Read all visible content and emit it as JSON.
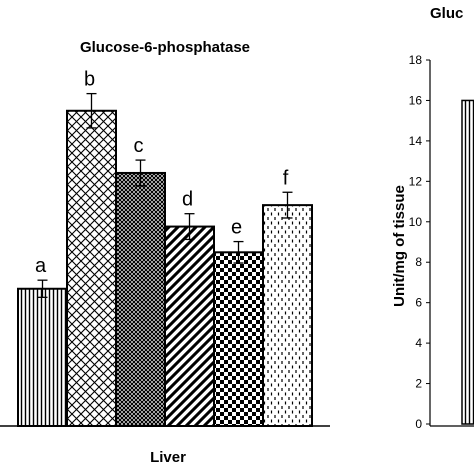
{
  "chart_data": [
    {
      "type": "bar",
      "title": "Glucose-6-phosphatase",
      "xlabel": "Liver",
      "ylabel": "",
      "ylim": [
        0,
        18
      ],
      "categories": [
        "a",
        "b",
        "c",
        "d",
        "e",
        "f"
      ],
      "values": [
        6.4,
        14.7,
        11.8,
        9.3,
        8.1,
        10.3
      ],
      "errors": [
        0.4,
        0.8,
        0.6,
        0.6,
        0.5,
        0.6
      ],
      "patterns": [
        "vertical-lines",
        "large-crosshatch",
        "dense-crosshatch",
        "diagonal-stripes",
        "checkerboard",
        "dashed-dots"
      ],
      "grid": false
    },
    {
      "type": "bar",
      "title": "Gluc",
      "xlabel": "",
      "ylabel": "Unit/mg of tissue",
      "ylim": [
        0,
        18
      ],
      "yticks": [
        "0",
        "2",
        "4",
        "6",
        "8",
        "10",
        "12",
        "14",
        "16",
        "18"
      ],
      "categories": [
        ""
      ],
      "values": [
        16
      ],
      "patterns": [
        "vertical-lines"
      ],
      "grid": false
    }
  ]
}
